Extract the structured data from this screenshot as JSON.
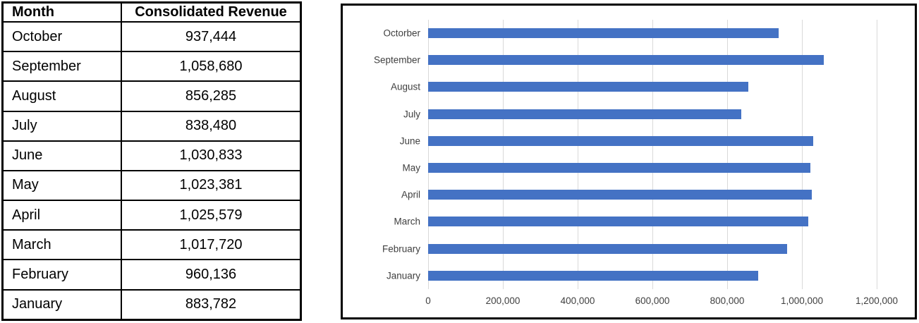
{
  "table": {
    "headers": [
      "Month",
      "Consolidated Revenue"
    ],
    "rows": [
      {
        "month": "October",
        "revenue": "937,444"
      },
      {
        "month": "September",
        "revenue": "1,058,680"
      },
      {
        "month": "August",
        "revenue": "856,285"
      },
      {
        "month": "July",
        "revenue": "838,480"
      },
      {
        "month": "June",
        "revenue": "1,030,833"
      },
      {
        "month": "May",
        "revenue": "1,023,381"
      },
      {
        "month": "April",
        "revenue": "1,025,579"
      },
      {
        "month": "March",
        "revenue": "1,017,720"
      },
      {
        "month": "February",
        "revenue": "960,136"
      },
      {
        "month": "January",
        "revenue": "883,782"
      }
    ]
  },
  "chart_data": {
    "type": "bar",
    "orientation": "horizontal",
    "title": "",
    "xlabel": "",
    "ylabel": "",
    "categories": [
      "Octorber",
      "September",
      "August",
      "July",
      "June",
      "May",
      "April",
      "March",
      "February",
      "January"
    ],
    "values": [
      937444,
      1058680,
      856285,
      838480,
      1030833,
      1023381,
      1025579,
      1017720,
      960136,
      883782
    ],
    "xlim": [
      0,
      1200000
    ],
    "x_tick_labels": [
      "0",
      "200,000",
      "400,000",
      "600,000",
      "800,000",
      "1,000,000",
      "1,200,000"
    ],
    "grid": "vertical-only",
    "legend": "none",
    "bar_color": "#4472C4",
    "gridline_color": "#D9D9D9",
    "axis_text_color": "#404040"
  }
}
